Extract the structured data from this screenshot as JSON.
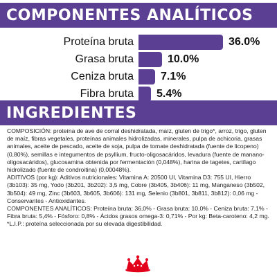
{
  "analytics": {
    "title": "COMPONENTES ANALÍTICOS",
    "rows": [
      {
        "label": "Proteína bruta",
        "value_text": "36.0%",
        "value": 36.0
      },
      {
        "label": "Grasa bruta",
        "value_text": "10.0%",
        "value": 10.0
      },
      {
        "label": "Ceniza bruta",
        "value_text": "7.1%",
        "value": 7.1
      },
      {
        "label": "Fibra bruta",
        "value_text": "5.4%",
        "value": 5.4
      }
    ],
    "bar_color": "#5b3f92"
  },
  "ingredients": {
    "title": "INGREDIENTES",
    "paragraphs": [
      "COMPOSICIÓN: proteína de ave de corral deshidratada, maíz, gluten de trigo*, arroz, trigo, gluten de maíz, fibras vegetales, proteínas animales hidrolizadas, minerales, pulpa de achicoria, grasas animales, aceite de pescado, aceite de soja, pulpa de tomate deshidratada (fuente de licopeno) (0,80%), semillas e integumentos de psyllium, fructo-oligosacáridos, levadura (fuente de manano-oligosacáridos), glucosamina obtenida por fermentación (0,048%), harina de tagetes, cartílago hidrolizado (fuente de condroitina) (0,00048%).",
      "ADITIVOS (por kg): Aditivos nutricionales: Vitamina A: 20500 UI, Vitamina D3: 755 UI, Hierro (3b103): 35 mg, Yodo (3b201, 3b202): 3,5 mg, Cobre (3b405, 3b406): 11 mg, Manganeso (3b502, 3b504): 49 mg, Zinc (3b603, 3b605, 3b606): 131 mg, Selenio (3b801, 3b811, 3b812): 0,06 mg - Conservantes - Antioxidantes.",
      "COMPONENTES ANALÍTICOS: Proteína bruta: 36,0% - Grasa bruta: 10,0% - Ceniza bruta: 7,1% - Fibra bruta: 5,4% - Fósforo: 0,8% - Ácidos grasos omega-3: 0,71% - Por kg: Beta-caroteno: 4,2 mg.",
      "*L.I.P.: proteína seleccionada por su elevada digestibilidad."
    ]
  },
  "logo": {
    "icon": "crown-icon",
    "color": "#e2001a"
  }
}
